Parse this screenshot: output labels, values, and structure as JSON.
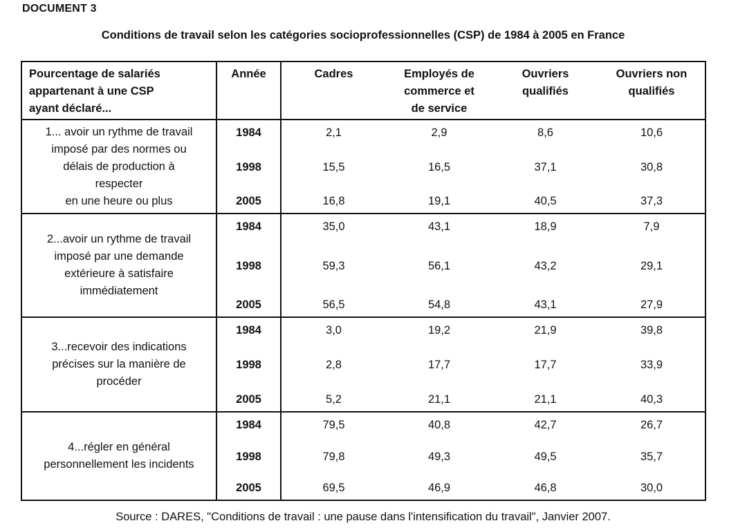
{
  "document_label": "DOCUMENT 3",
  "title": "Conditions de travail selon les catégories socioprofessionnelles (CSP) de 1984 à 2005 en France",
  "table": {
    "headers": {
      "description_lines": [
        "Pourcentage de salariés",
        "appartenant à une CSP",
        "ayant déclaré..."
      ],
      "year": "Année",
      "columns": [
        [
          "Cadres"
        ],
        [
          "Employés de",
          "commerce et",
          "de service"
        ],
        [
          "Ouvriers",
          "qualifiés"
        ],
        [
          "Ouvriers non",
          "qualifiés"
        ]
      ]
    },
    "groups": [
      {
        "description_lines": [
          "1... avoir un rythme de travail",
          "imposé par des normes ou",
          "délais de production à",
          "respecter",
          "en une heure ou plus"
        ],
        "years": [
          "1984",
          "1998",
          "2005"
        ],
        "values": [
          [
            "2,1",
            "15,5",
            "16,8"
          ],
          [
            "2,9",
            "16,5",
            "19,1"
          ],
          [
            "8,6",
            "37,1",
            "40,5"
          ],
          [
            "10,6",
            "30,8",
            "37,3"
          ]
        ]
      },
      {
        "description_lines": [
          "2...avoir un rythme de travail",
          "imposé par une demande",
          "extérieure à satisfaire",
          "immédiatement"
        ],
        "years": [
          "1984",
          "1998",
          "2005"
        ],
        "values": [
          [
            "35,0",
            "59,3",
            "56,5"
          ],
          [
            "43,1",
            "56,1",
            "54,8"
          ],
          [
            "18,9",
            "43,2",
            "43,1"
          ],
          [
            "7,9",
            "29,1",
            "27,9"
          ]
        ]
      },
      {
        "description_lines": [
          "3...recevoir des indications",
          "précises sur la manière de",
          "procéder"
        ],
        "years": [
          "1984",
          "1998",
          "2005"
        ],
        "values": [
          [
            "3,0",
            "2,8",
            "5,2"
          ],
          [
            "19,2",
            "17,7",
            "21,1"
          ],
          [
            "21,9",
            "17,7",
            "21,1"
          ],
          [
            "39,8",
            "33,9",
            "40,3"
          ]
        ]
      },
      {
        "description_lines": [
          "4...régler en général",
          "personnellement les incidents"
        ],
        "years": [
          "1984",
          "1998",
          "2005"
        ],
        "values": [
          [
            "79,5",
            "79,8",
            "69,5"
          ],
          [
            "40,8",
            "49,3",
            "46,9"
          ],
          [
            "42,7",
            "49,5",
            "46,8"
          ],
          [
            "26,7",
            "35,7",
            "30,0"
          ]
        ]
      }
    ]
  },
  "source": "Source : DARES,  \"Conditions de travail : une pause dans l'intensification du travail\", Janvier 2007."
}
